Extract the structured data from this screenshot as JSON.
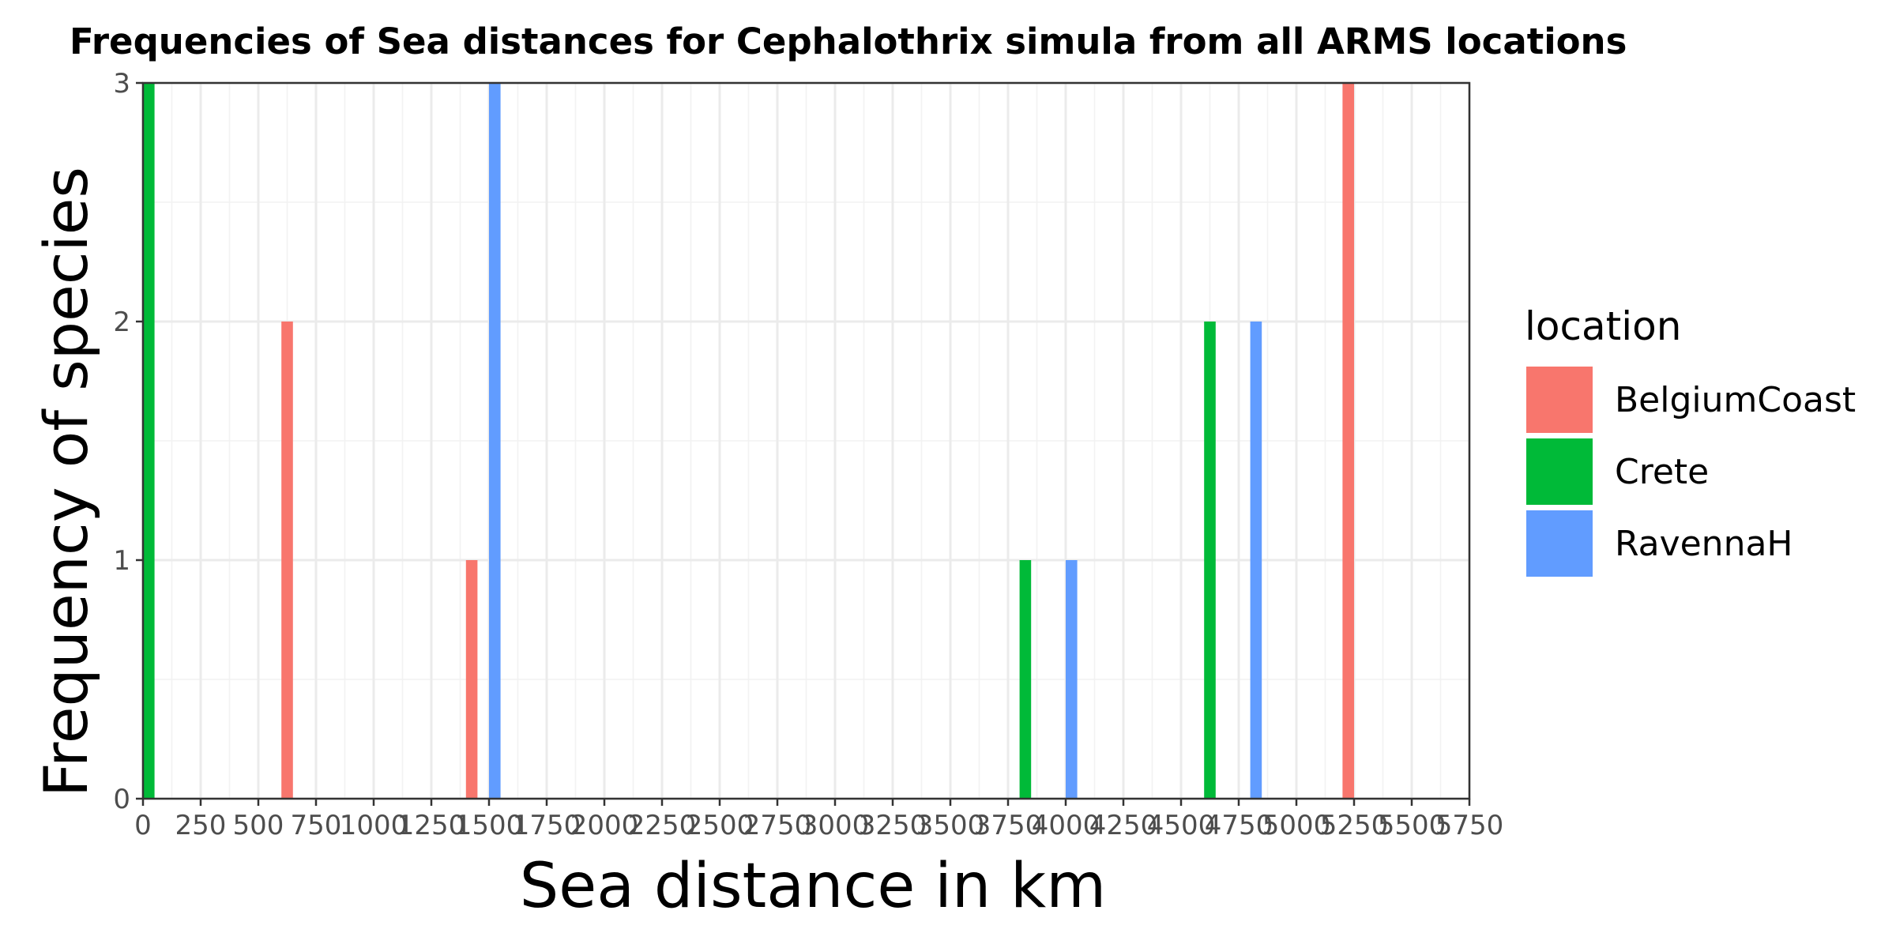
{
  "chart_data": {
    "type": "bar",
    "title": "Frequencies of Sea distances for Cephalothrix simula from all ARMS locations",
    "xlabel": "Sea distance in km",
    "ylabel": "Frequency of species",
    "xlim": [
      0,
      5750
    ],
    "ylim": [
      0,
      3
    ],
    "x_ticks": [
      "0",
      "250",
      "500",
      "750",
      "1000",
      "1250",
      "1500",
      "1750",
      "2000",
      "2250",
      "2500",
      "2750",
      "3000",
      "3250",
      "3500",
      "3750",
      "4000",
      "4250",
      "4500",
      "4750",
      "5000",
      "5250",
      "5500",
      "5750"
    ],
    "y_ticks": [
      "0",
      "1",
      "2",
      "3"
    ],
    "grid": true,
    "legend": {
      "title": "location",
      "position": "right"
    },
    "series": [
      {
        "name": "BelgiumCoast",
        "color": "#F8766D",
        "points": [
          {
            "x": 625,
            "y": 2
          },
          {
            "x": 1425,
            "y": 1
          },
          {
            "x": 5225,
            "y": 3
          }
        ]
      },
      {
        "name": "Crete",
        "color": "#00BA38",
        "points": [
          {
            "x": 25,
            "y": 3
          },
          {
            "x": 3825,
            "y": 1
          },
          {
            "x": 4625,
            "y": 2
          }
        ]
      },
      {
        "name": "RavennaH",
        "color": "#619CFF",
        "points": [
          {
            "x": 1525,
            "y": 3
          },
          {
            "x": 4025,
            "y": 1
          },
          {
            "x": 4825,
            "y": 2
          }
        ]
      }
    ]
  }
}
